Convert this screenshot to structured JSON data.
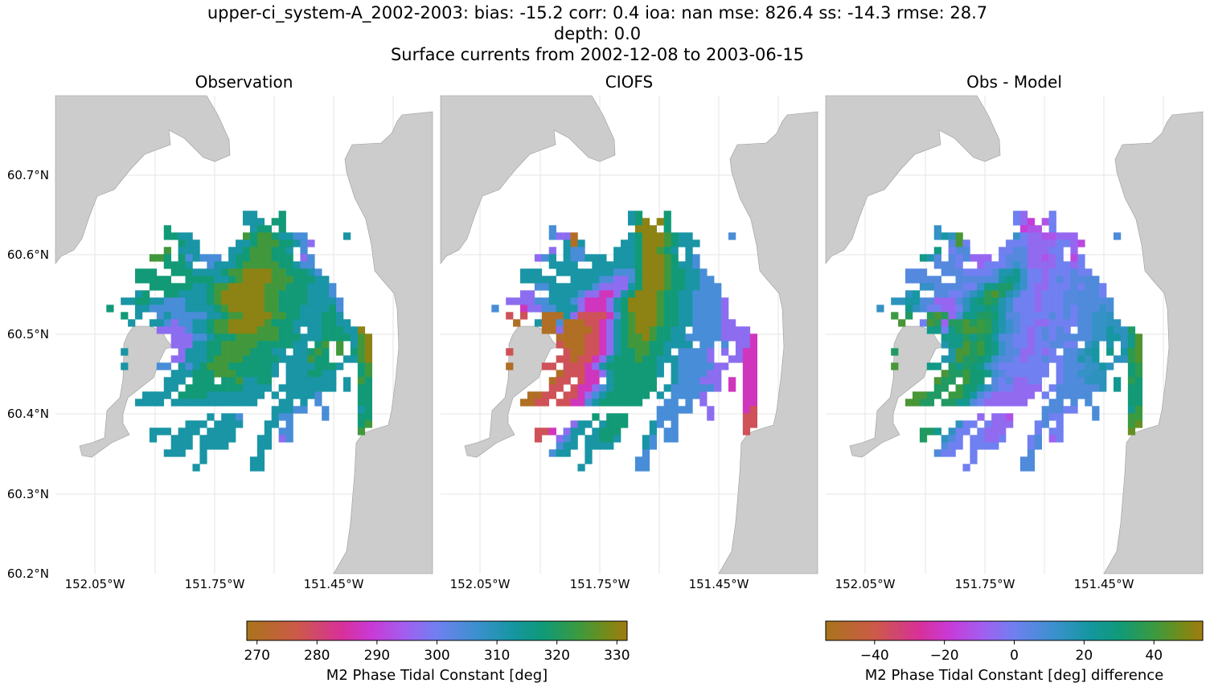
{
  "figure": {
    "title_lines": [
      "upper-ci_system-A_2002-2003: bias: -15.2  corr: 0.4  ioa: nan  mse: 826.4  ss: -14.3  rmse: 28.7",
      "depth: 0.0",
      "Surface currents from 2002-12-08 to 2003-06-15"
    ]
  },
  "panels": [
    {
      "title": "Observation"
    },
    {
      "title": "CIOFS"
    },
    {
      "title": "Obs - Model"
    }
  ],
  "axes": {
    "lat_ticks": [
      "60.7°N",
      "60.6°N",
      "60.5°N",
      "60.4°N",
      "60.3°N",
      "60.2°N"
    ],
    "lon_ticks": [
      "152.05°W",
      "151.75°W",
      "151.45°W"
    ]
  },
  "colors": {
    "land": "#cccccc",
    "land_edge": "#9a9a9a",
    "grid": "#e6e6e6"
  },
  "colormap": [
    [
      0,
      "#a9741c"
    ],
    [
      0.13,
      "#cc5a48"
    ],
    [
      0.25,
      "#d8309a"
    ],
    [
      0.33,
      "#c83ad8"
    ],
    [
      0.42,
      "#a060f0"
    ],
    [
      0.5,
      "#7080f0"
    ],
    [
      0.6,
      "#3d90d0"
    ],
    [
      0.7,
      "#1596a0"
    ],
    [
      0.78,
      "#109a78"
    ],
    [
      0.87,
      "#3a9a40"
    ],
    [
      0.95,
      "#788a18"
    ],
    [
      1,
      "#a37a10"
    ]
  ],
  "colorbars": [
    {
      "label": "M2 Phase Tidal Constant [deg]",
      "range": [
        268.3,
        331.7
      ],
      "ticks": [
        270,
        280,
        290,
        300,
        310,
        320,
        330
      ],
      "tick_labels": [
        "270",
        "280",
        "290",
        "300",
        "310",
        "320",
        "330"
      ]
    },
    {
      "label": "M2 Phase Tidal Constant [deg] difference",
      "range": [
        -54,
        54
      ],
      "ticks": [
        -40,
        -20,
        0,
        20,
        40
      ],
      "tick_labels": [
        "−40",
        "−20",
        "0",
        "20",
        "40"
      ]
    }
  ],
  "chart_data": {
    "type": "heatmap",
    "units": "deg",
    "value_codes": {
      "N": 270,
      "K": 278,
      "M": 287,
      "P": 297,
      "B": 305,
      "T": 312,
      "G": 318,
      "O": 324,
      "R": 330
    },
    "observation": [
      "...................TT...G............",
      "...................TTT.GG............",
      "........G...........TGG.G............",
      "........GGTT.......OGOOGTTBB.....T...",
      "..........GTT.....TTGOOOGGTBP........",
      "........O.TTT....TTGOOOGGT.B.........",
      "......OOG.GBTBBB.TGGOOOGGG.PB........",
      "........GGGT..BTTTGOOOOOGGTBB........",
      "....GGG..GGGTTTTGOORRRROOGGGTB.......",
      "....GGGGG..GGGGTTGORRRROOOGGGTT......",
      "......GGGGGGTTGOORRRRROOOGGGTTTB.....",
      "....TG..GGTTTTGORRRRRROOGGGGTTTB.....",
      "..TTGGTTBBBTTTGORRRRRROOGGGGTTTTB....",
      "G...TTBBBBBTTTTGORRRRROOGGGTTTTGB....",
      "..G.T..BTBBBBBTTGOORRRROOGGTTTGGT....",
      "...T..TTBPBBTTGOORRRRROGGGTTTTGGTT...",
      ".......PPPPBTTGOORRRROOOGGT.TTGGGTTR.",
      ".........PPPBBTGGGOOOOOOGGGTTTGGGGTOR",
      ".........PPPTTGGOOOOOGGGGGTT.GO.O.TOR",
      "..T.......PTTTGGOOOOGGGTT.TTGOG.O.GOR",
      ".........PPTTTGOOOOGGGGGTTTTOGG..TTOR",
      "..T....BB.TBTGOOOGGGGGGT.TTTTGGGT..GO",
      ".........TTTGGGOOOGGGGGT.TTTGGTT...GO",
      "........TTT.GGG.GGOTTGG..TTTTTTT.T.OG",
      "........TT.GGGGGGGGTTTT.TTTTTTTT.T.GG",
      ".....TTTT.GGGGTTTTTTTT.T.TTTTB.....GG",
      "....TTTT.TTTTTTTTTTTT...TT.T.B.....GG",
      ".......................TTTBB..B....TG",
      "..............T.TTB....TBB....B....GG",
      "...........TTT.TTTT...TT.B.........GO",
      "......TTT.TTT.TTTT....T.BB.........O.",
      "......T..TTT.TTTTT...TT.PB...........",
      ".........TTT.TTTT....TT..............",
      "........TTT..T.......T...............",
      ".............T......TT...............",
      "............T.......TT..............."
    ],
    "model": [
      "...................TG...G............",
      "...................TGR.RG............",
      "........B...........RRR.G............",
      "........BPPN.......TGRRROGTT.....B...",
      "..........TNT.....TTGRRROGTTT........",
      "........P.TBB....TTTGRROGT.T.........",
      "......PBT.TBBTTT.TTTGRRROG.TB........",
      "........TTTT..TTTTTTGRRROGTTB........",
      "....TTT..TTTTTTTTBBBGRRROGGTTB.......",
      "....TTTTT..TTTTBBPPBGRRROGGTTBB......",
      "......BBTTTTTTBPPPPTGRRROGGTTBBB.....",
      "....PP..TTTTBPPMMPTGRRROGGTTBBBB.....",
      "..PPPPBBTTTBPMMMPTGRRRROGGTTBBBBP....",
      "B...MPPBBTTTPMMMPTGRRRROGGTTBBBBP....",
      "..K.K..NNNTPKKKKMBGORRROGGTTBBBBP....",
      "...N..TNNBNNNKKMPTGORRROGGTTBBBBPP...",
      ".......NNPNNNNKMPTGORROGGTT.BBBBPPPP.",
      ".........NNNNKKMPTGOOROGGTTBBBBBPPPPM",
      ".........KNNNKKMPTGOOOGGTTTT.BB.B.PPM",
      "..K.......KNNKKMPTGGOOGGT.BBBBP.P.PMM",
      ".........KKNKKMPTGGGOGGTTTBBBBP..PPMM",
      "..N....KK.KKKMPTGGGGGGGT.TBBBBBPP..MM",
      ".........NKKKMMPTGGGGGGT.TBBBBPP...MM",
      "........NKK.KMM.TGGGGGG..TBBBPPP.M.MM",
      "........KK.KMMPBTGGGGGG.TBBBBBBP.M.MM",
      ".....NNKK.KKMPBTGGGGGG.T.BBBBP.....MM",
      "....NNKK.KKMMBTGGGGGG...BB.B.P.....MM",
      ".......................BBBBB..P....MK",
      "..............G.GGG....BBB....P....KK",
      "...........PTT.TGGG...TB.B.........KK",
      "......KKM.PTT.TGGG....T.BB.........K.",
      "......K..PBT.TTGGT...TB.BB...........",
      ".........BTT.TTTT....TB..............",
      "........BTT..T.......B...............",
      ".............T......BB...............",
      "............T.......BB..............."
    ]
  }
}
